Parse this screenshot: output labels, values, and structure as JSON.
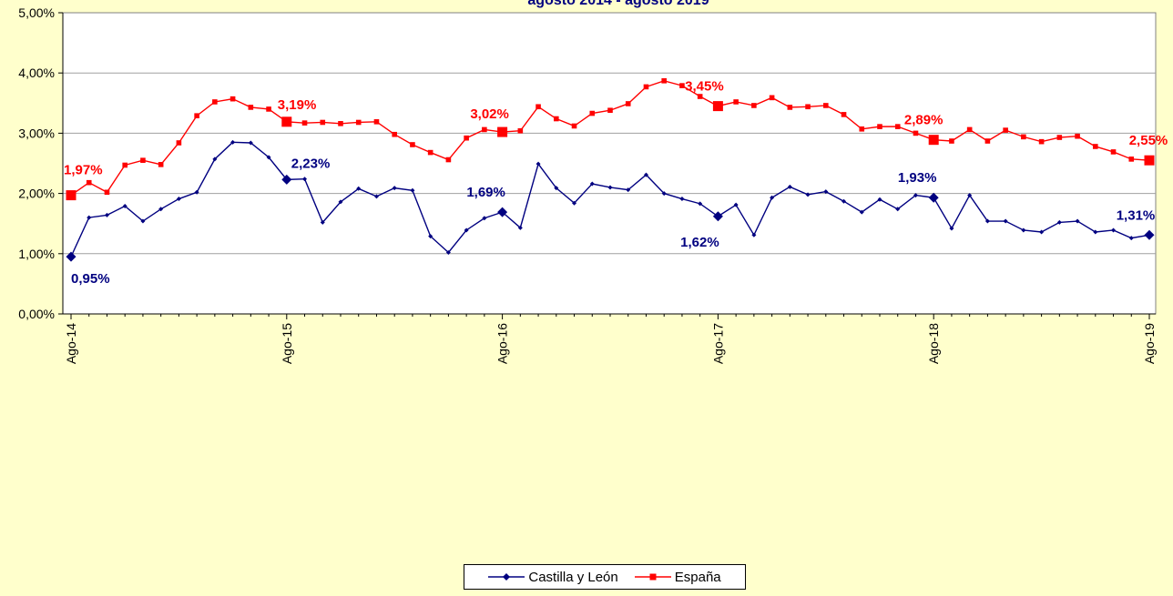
{
  "chart_data": {
    "type": "line",
    "title": "agosto 2014 - agosto 2019",
    "ylim": [
      0,
      5
    ],
    "yticks": [
      "0,00%",
      "1,00%",
      "2,00%",
      "3,00%",
      "4,00%",
      "5,00%"
    ],
    "xticks": [
      "Ago-14",
      "Ago-15",
      "Ago-16",
      "Ago-17",
      "Ago-18",
      "Ago-19"
    ],
    "n_points": 61,
    "legend_position": "bottom",
    "grid": "horizontal",
    "series": [
      {
        "name": "Castilla y León",
        "color": "#000080",
        "values": [
          0.95,
          1.6,
          1.64,
          1.79,
          1.54,
          1.74,
          1.91,
          2.02,
          2.57,
          2.85,
          2.84,
          2.6,
          2.23,
          2.24,
          1.52,
          1.86,
          2.08,
          1.95,
          2.09,
          2.05,
          1.29,
          1.02,
          1.39,
          1.59,
          1.69,
          1.43,
          2.49,
          2.09,
          1.84,
          2.16,
          2.1,
          2.06,
          2.31,
          2.0,
          1.91,
          1.83,
          1.62,
          1.81,
          1.31,
          1.93,
          2.11,
          1.98,
          2.03,
          1.87,
          1.69,
          1.9,
          1.74,
          1.97,
          1.93,
          1.42,
          1.97,
          1.54,
          1.54,
          1.39,
          1.36,
          1.52,
          1.54,
          1.36,
          1.39,
          1.26,
          1.31
        ],
        "labels": [
          {
            "index": 0,
            "text": "0,95%"
          },
          {
            "index": 12,
            "text": "2,23%"
          },
          {
            "index": 24,
            "text": "1,69%"
          },
          {
            "index": 36,
            "text": "1,62%"
          },
          {
            "index": 48,
            "text": "1,93%"
          },
          {
            "index": 60,
            "text": "1,31%"
          }
        ]
      },
      {
        "name": "España",
        "color": "#ff0000",
        "values": [
          1.97,
          2.18,
          2.02,
          2.47,
          2.55,
          2.48,
          2.84,
          3.29,
          3.52,
          3.57,
          3.43,
          3.4,
          3.19,
          3.17,
          3.18,
          3.16,
          3.18,
          3.19,
          2.98,
          2.81,
          2.68,
          2.56,
          2.92,
          3.06,
          3.02,
          3.04,
          3.44,
          3.24,
          3.12,
          3.33,
          3.38,
          3.49,
          3.77,
          3.87,
          3.79,
          3.61,
          3.45,
          3.52,
          3.46,
          3.59,
          3.43,
          3.44,
          3.46,
          3.31,
          3.07,
          3.11,
          3.11,
          3.0,
          2.89,
          2.87,
          3.06,
          2.87,
          3.05,
          2.94,
          2.86,
          2.93,
          2.95,
          2.78,
          2.69,
          2.57,
          2.55
        ],
        "labels": [
          {
            "index": 0,
            "text": "1,97%"
          },
          {
            "index": 12,
            "text": "3,19%"
          },
          {
            "index": 24,
            "text": "3,02%"
          },
          {
            "index": 36,
            "text": "3,45%"
          },
          {
            "index": 48,
            "text": "2,89%"
          },
          {
            "index": 60,
            "text": "2,55%"
          }
        ]
      }
    ]
  }
}
